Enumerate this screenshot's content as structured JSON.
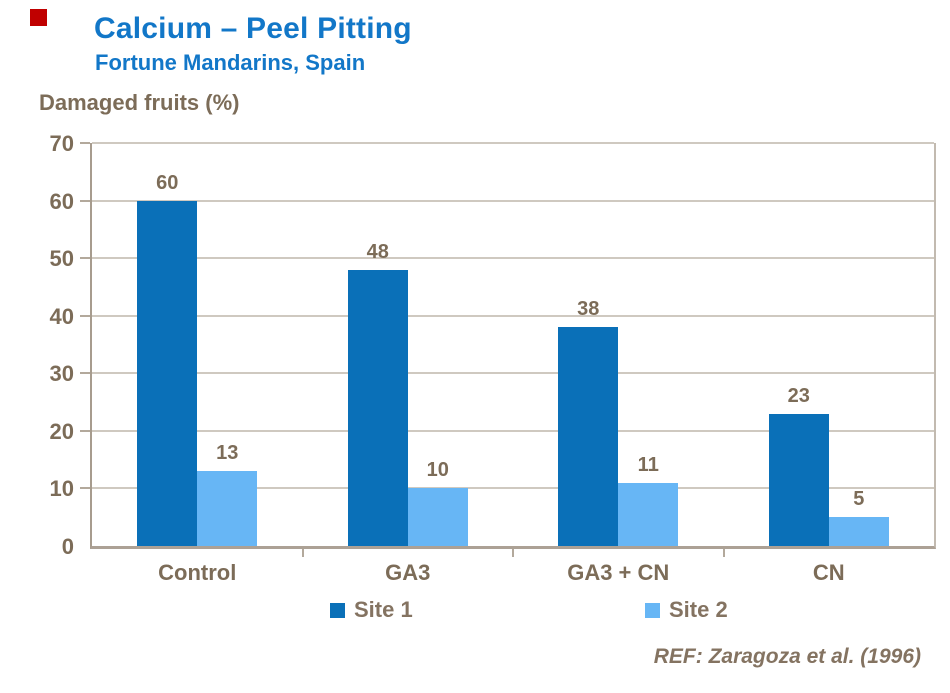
{
  "decor": {
    "red_square_color": "#c00000"
  },
  "header": {
    "title_color": "#1277c8"
  },
  "chart_data": {
    "type": "bar",
    "title": "Calcium – Peel Pitting",
    "subtitle": "Fortune Mandarins, Spain",
    "ylabel": "Damaged fruits (%)",
    "categories": [
      "Control",
      "GA3",
      "GA3 + CN",
      "CN"
    ],
    "series": [
      {
        "name": "Site 1",
        "color": "#0a70b8",
        "values": [
          60,
          48,
          38,
          23
        ]
      },
      {
        "name": "Site 2",
        "color": "#67b6f5",
        "values": [
          13,
          10,
          11,
          5
        ]
      }
    ],
    "ylim": [
      0,
      70
    ],
    "ytick_step": 10,
    "ytick_labels": [
      "0",
      "10",
      "20",
      "30",
      "40",
      "50",
      "60",
      "70"
    ],
    "grid": true,
    "data_labels": true,
    "legend_position": "bottom"
  },
  "footer": {
    "ref": "REF: Zaragoza et al. (1996)"
  }
}
